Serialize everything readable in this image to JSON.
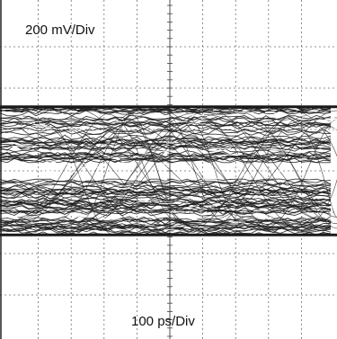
{
  "display": {
    "vertical_scale": "200 mV/Div",
    "horizontal_scale": "100 ps/Div"
  },
  "chart_data": {
    "type": "line",
    "subtype": "eye-diagram",
    "title": "",
    "vertical_scale_label": "200 mV/Div",
    "horizontal_scale_label": "100 ps/Div",
    "grid": true,
    "x_divisions": 10,
    "y_divisions": 8,
    "xlim_div": [
      0,
      10
    ],
    "ylim_div": [
      -4,
      4
    ],
    "high_level_div": 1.55,
    "low_level_div": -1.55,
    "eye_opening_div": 0.4,
    "transitions_per_bit": 2,
    "colors": {
      "trace": "#1a1a1a",
      "grid": "#6e6e6e",
      "background": "#ffffff"
    }
  }
}
